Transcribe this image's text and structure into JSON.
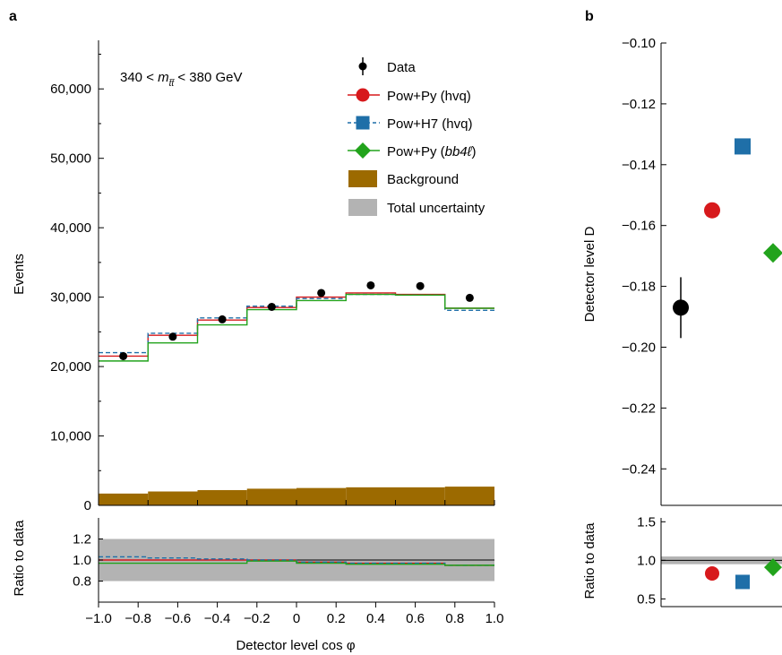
{
  "chart_data": [
    {
      "panel": "a",
      "type": "histogram",
      "ylabel": "Events",
      "annotation": {
        "pre": "340 < ",
        "var": "m",
        "sub": "t̄t̄",
        "post": " < 380 GeV"
      },
      "ylim": [
        0,
        67000
      ],
      "yticks": [
        0,
        10000,
        20000,
        30000,
        40000,
        50000,
        60000
      ],
      "ytick_labels": [
        "0",
        "10,000",
        "20,000",
        "30,000",
        "40,000",
        "50,000",
        "60,000"
      ],
      "bins": [
        -1.0,
        -0.75,
        -0.5,
        -0.25,
        0.0,
        0.25,
        0.5,
        0.75,
        1.0
      ],
      "data": {
        "x": [
          -0.875,
          -0.625,
          -0.375,
          -0.125,
          0.125,
          0.375,
          0.625,
          0.875
        ],
        "y": [
          21500,
          24300,
          26800,
          28600,
          30600,
          31700,
          31600,
          29900
        ]
      },
      "series": [
        {
          "name": "Pow+Py (hvq)",
          "color": "#d7191c",
          "values": [
            21500,
            24500,
            26700,
            28500,
            30000,
            30600,
            30400,
            28400
          ]
        },
        {
          "name": "Pow+H7 (hvq)",
          "color": "#1f6fa8",
          "values": [
            22000,
            24800,
            27000,
            28700,
            29800,
            30400,
            30300,
            28100
          ]
        },
        {
          "name": "Pow+Py (bb4ℓ)",
          "color": "#22a31c",
          "values": [
            20800,
            23400,
            26000,
            28200,
            29500,
            30400,
            30300,
            28400
          ]
        }
      ],
      "background": {
        "name": "Background",
        "color": "#9c6a00",
        "values": [
          1700,
          2000,
          2200,
          2400,
          2500,
          2600,
          2600,
          2700
        ]
      },
      "legend": [
        {
          "label": "Data"
        },
        {
          "label": "Pow+Py (hvq)"
        },
        {
          "label": "Pow+H7 (hvq)"
        },
        {
          "label_pre": "Pow+Py (",
          "label_it": "bb4ℓ",
          "label_post": ")"
        },
        {
          "label": "Background"
        },
        {
          "label": "Total uncertainty"
        }
      ],
      "ratio": {
        "ylabel": "Ratio to data",
        "xlabel": "Detector level cos φ",
        "ylim": [
          0.6,
          1.4
        ],
        "yticks": [
          0.8,
          1.0,
          1.2
        ],
        "ytick_labels": [
          "0.8",
          "1.0",
          "1.2"
        ],
        "xticks": [
          -1.0,
          -0.8,
          -0.6,
          -0.4,
          -0.2,
          0,
          0.2,
          0.4,
          0.6,
          0.8,
          1.0
        ],
        "xtick_labels": [
          "−1.0",
          "−0.8",
          "−0.6",
          "−0.4",
          "−0.2",
          "0",
          "0.2",
          "0.4",
          "0.6",
          "0.8",
          "1.0"
        ],
        "uncertainty": [
          0.8,
          1.2
        ],
        "series": [
          {
            "name": "Pow+Py (hvq)",
            "values": [
              1.0,
              1.0,
              1.0,
              1.0,
              0.98,
              0.97,
              0.97,
              0.95
            ]
          },
          {
            "name": "Pow+H7 (hvq)",
            "values": [
              1.03,
              1.02,
              1.01,
              1.0,
              0.98,
              0.97,
              0.97,
              0.95
            ]
          },
          {
            "name": "Pow+Py (bb4ℓ)",
            "values": [
              0.97,
              0.97,
              0.97,
              0.99,
              0.97,
              0.96,
              0.96,
              0.95
            ]
          }
        ]
      }
    },
    {
      "panel": "b",
      "type": "scatter",
      "ylabel": "Detector level D",
      "ylim": [
        -0.252,
        -0.1
      ],
      "yticks": [
        -0.1,
        -0.12,
        -0.14,
        -0.16,
        -0.18,
        -0.2,
        -0.22,
        -0.24
      ],
      "ytick_labels": [
        "−0.10",
        "−0.12",
        "−0.14",
        "−0.16",
        "−0.18",
        "−0.20",
        "−0.22",
        "−0.24"
      ],
      "points": [
        {
          "name": "Data",
          "y": -0.187,
          "err": 0.01,
          "color": "#000000",
          "shape": "circle"
        },
        {
          "name": "Pow+Py (hvq)",
          "y": -0.155,
          "color": "#d7191c",
          "shape": "circle"
        },
        {
          "name": "Pow+H7 (hvq)",
          "y": -0.134,
          "color": "#1f6fa8",
          "shape": "square"
        },
        {
          "name": "Pow+Py (bb4ℓ)",
          "y": -0.169,
          "color": "#22a31c",
          "shape": "diamond"
        }
      ],
      "ratio": {
        "ylabel": "Ratio to data",
        "ylim": [
          0.4,
          1.55
        ],
        "yticks": [
          0.5,
          1.0,
          1.5
        ],
        "ytick_labels": [
          "0.5",
          "1.0",
          "1.5"
        ],
        "uncertainty": [
          0.95,
          1.05
        ],
        "points": [
          {
            "name": "Pow+Py (hvq)",
            "y": 0.83
          },
          {
            "name": "Pow+H7 (hvq)",
            "y": 0.72
          },
          {
            "name": "Pow+Py (bb4ℓ)",
            "y": 0.91
          }
        ]
      }
    }
  ],
  "colors": {
    "uncertainty": "#b3b3b3",
    "background": "#9c6a00",
    "pow_py": "#d7191c",
    "pow_h7": "#1f6fa8",
    "bb4l": "#22a31c"
  }
}
